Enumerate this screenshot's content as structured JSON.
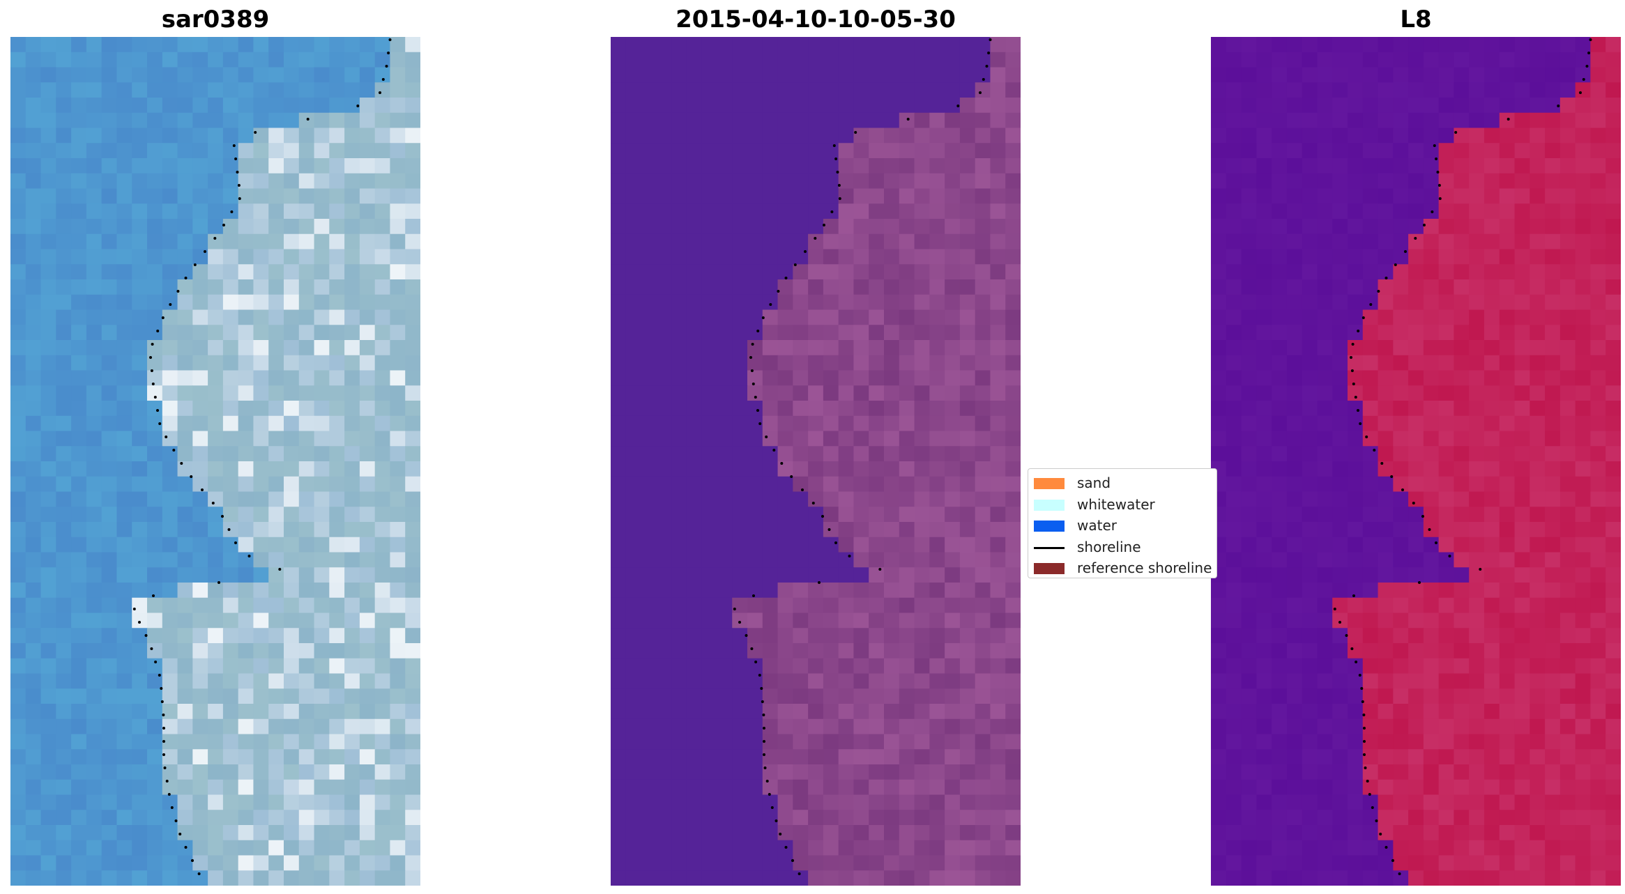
{
  "panels": [
    {
      "title": "sar0389",
      "icon": "rgb-satellite-image"
    },
    {
      "title": "2015-04-10-10-05-30",
      "icon": "classified-satellite-image"
    },
    {
      "title": "L8",
      "icon": "index-satellite-image"
    }
  ],
  "legend": {
    "items": [
      {
        "label": "sand",
        "color": "#ff8a3d",
        "kind": "patch"
      },
      {
        "label": "whitewater",
        "color": "#c8ffff",
        "kind": "patch"
      },
      {
        "label": "water",
        "color": "#0a5ef0",
        "kind": "patch"
      },
      {
        "label": "shoreline",
        "color": "#000000",
        "kind": "line"
      },
      {
        "label": "reference shoreline",
        "color": "#8b2a2a",
        "kind": "patch"
      }
    ]
  },
  "colors": {
    "panel1_water": "#4a8ccc",
    "panel1_land": "#9cc0cc",
    "panel2_water": "#552398",
    "panel2_land": "#7c3a80",
    "panel3_water": "#5c0f9a",
    "panel3_land": "#c01850"
  }
}
